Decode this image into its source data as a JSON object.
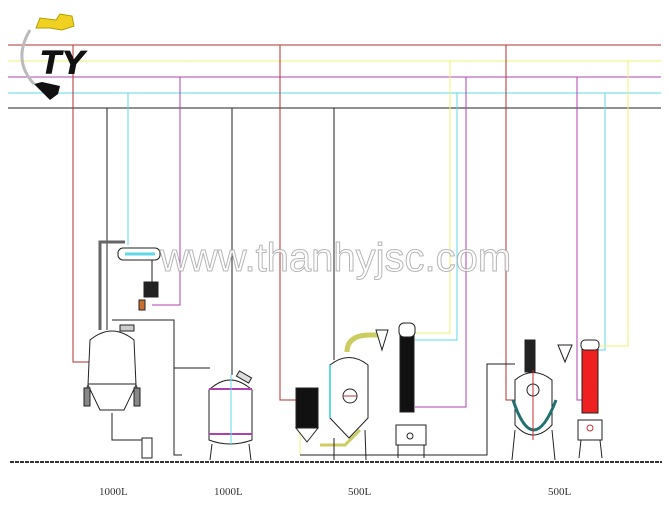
{
  "logo": {
    "text": "TY"
  },
  "watermark": "www.thanhyjsc.com",
  "capacity_labels": [
    "1000L",
    "1000L",
    "500L",
    "500L"
  ],
  "pipe_colors": {
    "red": "#b03030",
    "yellow": "#f0f070",
    "purple": "#b040b0",
    "cyan": "#60d8e8",
    "black": "#222222"
  }
}
